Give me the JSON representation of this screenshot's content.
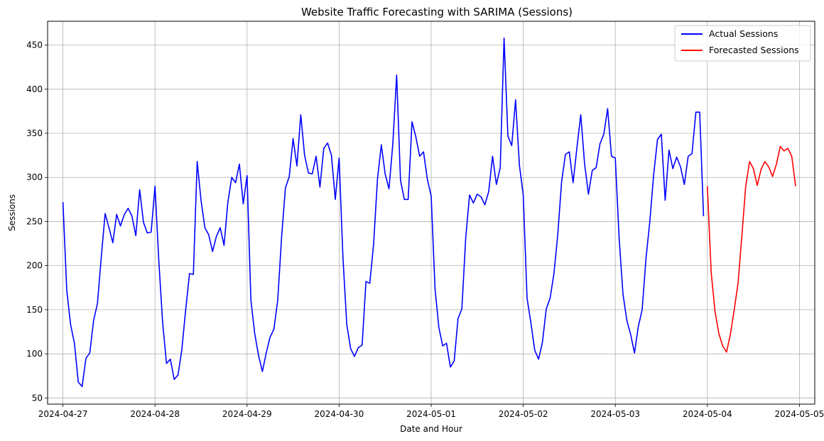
{
  "chart_data": {
    "type": "line",
    "title": "Website Traffic Forecasting with SARIMA (Sessions)",
    "xlabel": "Date and Hour",
    "ylabel": "Sessions",
    "x_ticks": [
      "2024-04-27",
      "2024-04-28",
      "2024-04-29",
      "2024-04-30",
      "2024-05-01",
      "2024-05-02",
      "2024-05-03",
      "2024-05-04",
      "2024-05-05"
    ],
    "y_ticks": [
      50,
      100,
      150,
      200,
      250,
      300,
      350,
      400,
      450
    ],
    "xlim": [
      "2024-04-26T20:00",
      "2024-05-05T04:00"
    ],
    "ylim": [
      43,
      477
    ],
    "grid": true,
    "legend_position": "top-right",
    "series": [
      {
        "name": "Actual Sessions",
        "color": "#0000ff",
        "start": "2024-04-27T00:00",
        "interval_hours": 1,
        "values": [
          272,
          172,
          133,
          112,
          68,
          63,
          95,
          101,
          138,
          157,
          210,
          259,
          243,
          226,
          258,
          245,
          258,
          265,
          256,
          234,
          286,
          249,
          237,
          238,
          290,
          205,
          135,
          89,
          94,
          71,
          76,
          105,
          150,
          191,
          190,
          318,
          274,
          243,
          235,
          216,
          233,
          243,
          223,
          272,
          300,
          294,
          315,
          270,
          302,
          161,
          123,
          98,
          80,
          101,
          119,
          128,
          161,
          232,
          288,
          301,
          344,
          313,
          371,
          325,
          305,
          304,
          324,
          289,
          333,
          339,
          325,
          275,
          322,
          209,
          133,
          106,
          97,
          107,
          110,
          182,
          180,
          225,
          298,
          337,
          304,
          287,
          338,
          416,
          297,
          275,
          275,
          363,
          346,
          324,
          329,
          298,
          279,
          174,
          130,
          109,
          112,
          85,
          92,
          140,
          151,
          231,
          280,
          271,
          281,
          278,
          269,
          284,
          324,
          292,
          311,
          458,
          347,
          336,
          388,
          314,
          280,
          163,
          135,
          104,
          94,
          113,
          151,
          163,
          191,
          235,
          295,
          326,
          329,
          294,
          334,
          371,
          315,
          281,
          308,
          311,
          338,
          349,
          378,
          324,
          322,
          231,
          168,
          138,
          122,
          101,
          131,
          150,
          208,
          250,
          303,
          343,
          349,
          274,
          331,
          310,
          323,
          312,
          292,
          324,
          327,
          374,
          374,
          256
        ]
      },
      {
        "name": "Forecasted Sessions",
        "color": "#ff0000",
        "start": "2024-05-04T00:00",
        "interval_hours": 1,
        "values": [
          290,
          192,
          148,
          123,
          109,
          102,
          122,
          150,
          180,
          234,
          290,
          318,
          310,
          291,
          309,
          318,
          312,
          301,
          315,
          335,
          330,
          333,
          324,
          290
        ]
      }
    ]
  }
}
